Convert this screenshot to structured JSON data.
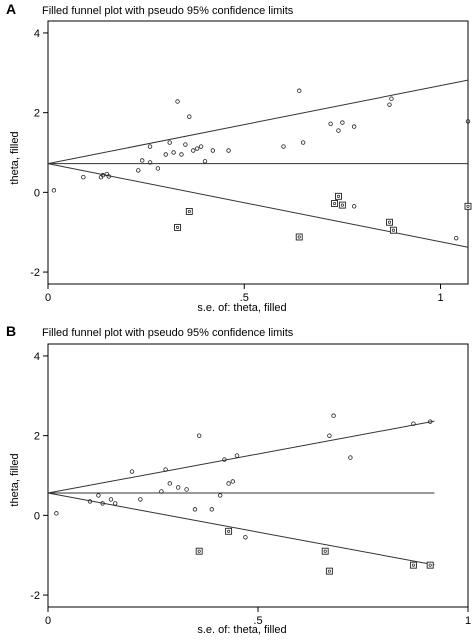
{
  "chart_data": [
    {
      "type": "scatter",
      "panel": "A",
      "title": "Filled funnel plot with pseudo 95% confidence limits",
      "xlabel": "s.e. of: theta, filled",
      "ylabel": "theta, filled",
      "xlim": [
        0,
        1.07
      ],
      "ylim": [
        -2.3,
        4.3
      ],
      "xticks": [
        {
          "value": 0,
          "label": "0"
        },
        {
          "value": 0.5,
          "label": ".5"
        },
        {
          "value": 1,
          "label": "1"
        }
      ],
      "yticks": [
        {
          "value": -2,
          "label": "-2"
        },
        {
          "value": 0,
          "label": "0"
        },
        {
          "value": 2,
          "label": "2"
        },
        {
          "value": 4,
          "label": "4"
        }
      ],
      "grid": false,
      "pooled_estimate": 0.72,
      "line_x_max": 1.07,
      "series": [
        {
          "marker": "circle",
          "points": [
            [
              0.015,
              0.05
            ],
            [
              0.09,
              0.38
            ],
            [
              0.135,
              0.38
            ],
            [
              0.14,
              0.43
            ],
            [
              0.15,
              0.46
            ],
            [
              0.155,
              0.4
            ],
            [
              0.23,
              0.55
            ],
            [
              0.24,
              0.8
            ],
            [
              0.26,
              0.75
            ],
            [
              0.26,
              1.15
            ],
            [
              0.28,
              0.6
            ],
            [
              0.3,
              0.95
            ],
            [
              0.31,
              1.25
            ],
            [
              0.32,
              1.0
            ],
            [
              0.33,
              2.28
            ],
            [
              0.34,
              0.95
            ],
            [
              0.35,
              1.2
            ],
            [
              0.36,
              1.9
            ],
            [
              0.37,
              1.05
            ],
            [
              0.38,
              1.1
            ],
            [
              0.39,
              1.15
            ],
            [
              0.4,
              0.78
            ],
            [
              0.42,
              1.05
            ],
            [
              0.46,
              1.05
            ],
            [
              0.6,
              1.15
            ],
            [
              0.64,
              2.55
            ],
            [
              0.65,
              1.25
            ],
            [
              0.72,
              1.72
            ],
            [
              0.74,
              1.55
            ],
            [
              0.75,
              1.75
            ],
            [
              0.78,
              1.65
            ],
            [
              0.78,
              -0.35
            ],
            [
              0.87,
              2.2
            ],
            [
              0.875,
              2.35
            ],
            [
              1.04,
              -1.15
            ],
            [
              1.07,
              1.78
            ]
          ]
        },
        {
          "marker": "square",
          "points": [
            [
              0.33,
              -0.88
            ],
            [
              0.36,
              -0.48
            ],
            [
              0.64,
              -1.12
            ],
            [
              0.73,
              -0.28
            ],
            [
              0.74,
              -0.1
            ],
            [
              0.75,
              -0.32
            ],
            [
              0.87,
              -0.75
            ],
            [
              0.88,
              -0.95
            ],
            [
              1.07,
              -0.35
            ]
          ]
        }
      ]
    },
    {
      "type": "scatter",
      "panel": "B",
      "title": "Filled funnel plot with pseudo 95% confidence limits",
      "xlabel": "s.e. of: theta, filled",
      "ylabel": "theta, filled",
      "xlim": [
        0,
        1
      ],
      "ylim": [
        -2.3,
        4.3
      ],
      "xticks": [
        {
          "value": 0,
          "label": "0"
        },
        {
          "value": 0.5,
          "label": ".5"
        },
        {
          "value": 1,
          "label": "1"
        }
      ],
      "yticks": [
        {
          "value": -2,
          "label": "-2"
        },
        {
          "value": 0,
          "label": "0"
        },
        {
          "value": 2,
          "label": "2"
        },
        {
          "value": 4,
          "label": "4"
        }
      ],
      "grid": false,
      "pooled_estimate": 0.56,
      "line_x_max": 0.92,
      "series": [
        {
          "marker": "circle",
          "points": [
            [
              0.02,
              0.05
            ],
            [
              0.1,
              0.35
            ],
            [
              0.12,
              0.5
            ],
            [
              0.13,
              0.3
            ],
            [
              0.15,
              0.4
            ],
            [
              0.16,
              0.3
            ],
            [
              0.2,
              1.1
            ],
            [
              0.22,
              0.4
            ],
            [
              0.27,
              0.6
            ],
            [
              0.28,
              1.15
            ],
            [
              0.29,
              0.8
            ],
            [
              0.31,
              0.7
            ],
            [
              0.33,
              0.65
            ],
            [
              0.35,
              0.15
            ],
            [
              0.36,
              2.0
            ],
            [
              0.39,
              0.15
            ],
            [
              0.41,
              0.5
            ],
            [
              0.42,
              1.4
            ],
            [
              0.43,
              0.8
            ],
            [
              0.44,
              0.85
            ],
            [
              0.45,
              1.5
            ],
            [
              0.47,
              -0.55
            ],
            [
              0.67,
              2.0
            ],
            [
              0.68,
              2.5
            ],
            [
              0.72,
              1.45
            ],
            [
              0.87,
              2.3
            ],
            [
              0.91,
              2.35
            ]
          ]
        },
        {
          "marker": "square",
          "points": [
            [
              0.36,
              -0.9
            ],
            [
              0.43,
              -0.4
            ],
            [
              0.66,
              -0.9
            ],
            [
              0.67,
              -1.4
            ],
            [
              0.87,
              -1.25
            ],
            [
              0.91,
              -1.25
            ]
          ]
        }
      ]
    }
  ]
}
